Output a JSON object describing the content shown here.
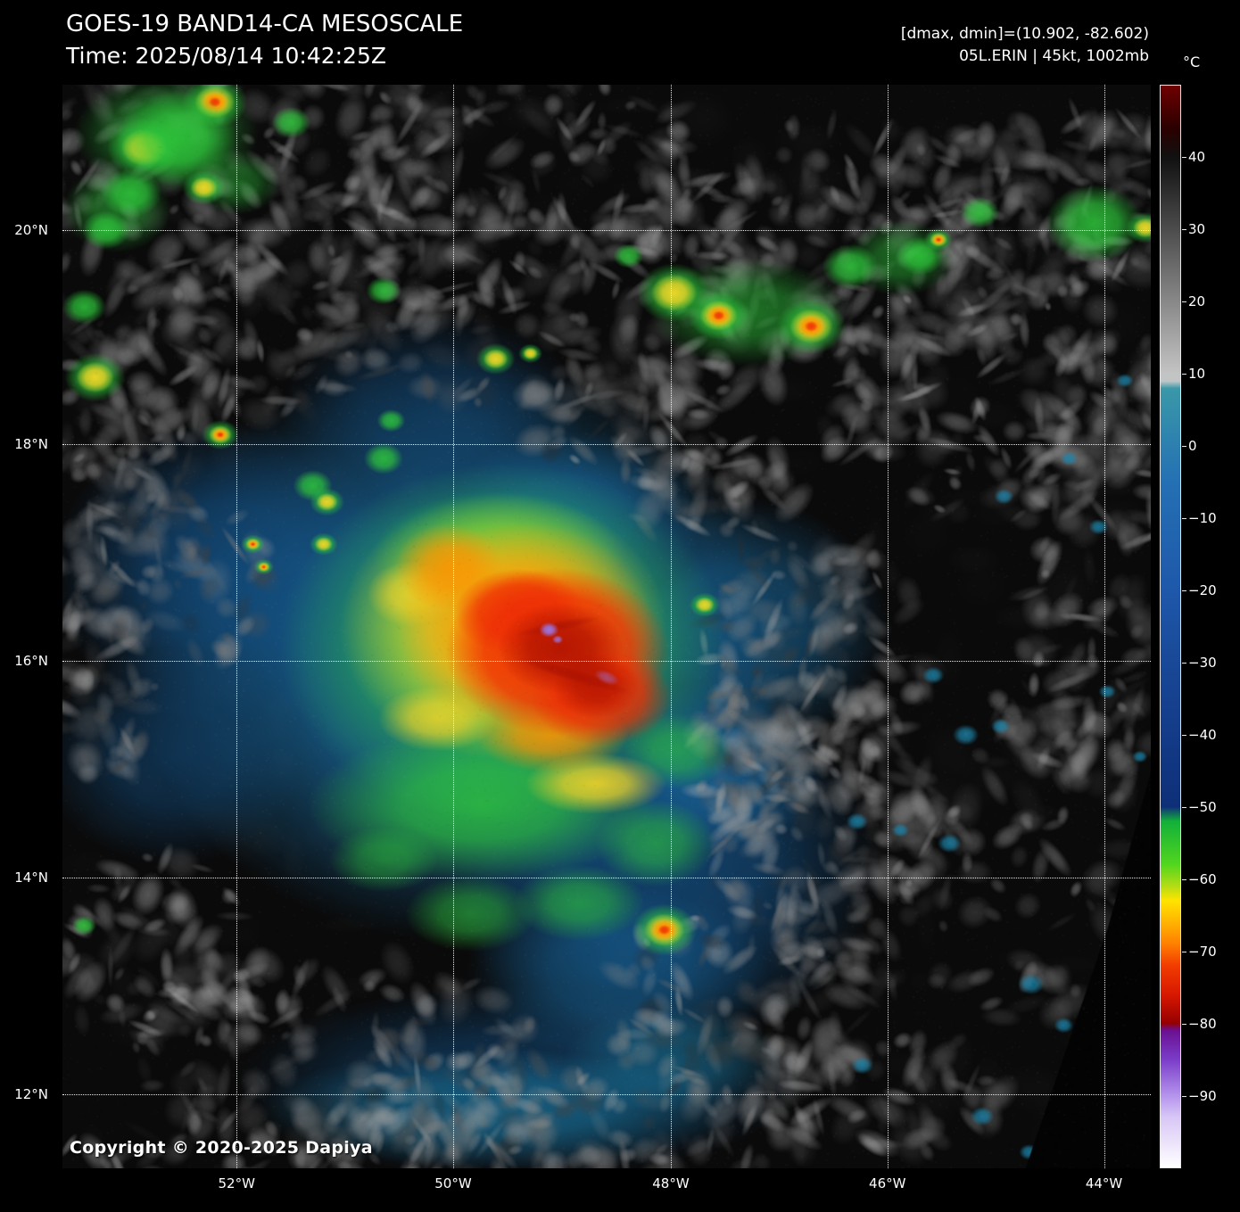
{
  "header": {
    "title": "GOES-19 BAND14-CA MESOSCALE",
    "time": "Time: 2025/08/14 10:42:25Z",
    "stats": "[dmax, dmin]=(10.902, -82.602)",
    "storm": "05L.ERIN | 45kt, 1002mb"
  },
  "copyright": "Copyright © 2020-2025 Dapiya",
  "axes": {
    "lat": [
      {
        "label": "20°N",
        "f": 0.134
      },
      {
        "label": "18°N",
        "f": 0.332
      },
      {
        "label": "16°N",
        "f": 0.532
      },
      {
        "label": "14°N",
        "f": 0.732
      },
      {
        "label": "12°N",
        "f": 0.932
      }
    ],
    "lon": [
      {
        "label": "52°W",
        "f": 0.16
      },
      {
        "label": "50°W",
        "f": 0.359
      },
      {
        "label": "48°W",
        "f": 0.559
      },
      {
        "label": "46°W",
        "f": 0.758
      },
      {
        "label": "44°W",
        "f": 0.957
      }
    ]
  },
  "colorbar": {
    "unit": "°C",
    "range": [
      50,
      -100
    ],
    "ticks": [
      "40",
      "30",
      "20",
      "10",
      "0",
      "−10",
      "−20",
      "−30",
      "−40",
      "−50",
      "−60",
      "−70",
      "−80",
      "−90"
    ],
    "tick_values": [
      40,
      30,
      20,
      10,
      0,
      -10,
      -20,
      -30,
      -40,
      -50,
      -60,
      -70,
      -80,
      -90
    ],
    "stops": [
      {
        "v": 50,
        "c": "#6e0000"
      },
      {
        "v": 44,
        "c": "#2a0000"
      },
      {
        "v": 40,
        "c": "#111111"
      },
      {
        "v": 10,
        "c": "#c4c4c4"
      },
      {
        "v": 9,
        "c": "#bfc6c6"
      },
      {
        "v": 8,
        "c": "#3a98a8"
      },
      {
        "v": -5,
        "c": "#2470b4"
      },
      {
        "v": -20,
        "c": "#1e58aa"
      },
      {
        "v": -35,
        "c": "#16418f"
      },
      {
        "v": -50,
        "c": "#0e2f78"
      },
      {
        "v": -52,
        "c": "#12b03a"
      },
      {
        "v": -58,
        "c": "#52d61e"
      },
      {
        "v": -61,
        "c": "#b4dc14"
      },
      {
        "v": -63,
        "c": "#ffe400"
      },
      {
        "v": -66,
        "c": "#ffb400"
      },
      {
        "v": -69,
        "c": "#ff8000"
      },
      {
        "v": -72,
        "c": "#f23c00"
      },
      {
        "v": -76,
        "c": "#d81800"
      },
      {
        "v": -80,
        "c": "#960000"
      },
      {
        "v": -81,
        "c": "#6a1090"
      },
      {
        "v": -85,
        "c": "#7a3cc8"
      },
      {
        "v": -90,
        "c": "#b493ec"
      },
      {
        "v": -93,
        "c": "#d8c6f6"
      },
      {
        "v": -100,
        "c": "#ffffff"
      }
    ]
  },
  "imagery": {
    "base": "#0a0a0a",
    "palette": {
      "green": "#2fc83c",
      "yellow": "#ffd926",
      "orange": "#ff9200",
      "red": "#ee2e06",
      "darkred": "#a81000",
      "teal": "#1d87ae",
      "blue": "#1a6fa8",
      "deepblue": "#14538a",
      "purple": "#9a7cf0"
    },
    "blue_field": [
      [
        0.36,
        0.52,
        0.3,
        0.27,
        "blue",
        0.9
      ],
      [
        0.15,
        0.45,
        0.16,
        0.14,
        "deepblue",
        0.7
      ],
      [
        0.55,
        0.72,
        0.2,
        0.17,
        "deepblue",
        0.75
      ],
      [
        0.62,
        0.5,
        0.14,
        0.12,
        "blue",
        0.6
      ],
      [
        0.42,
        0.92,
        0.26,
        0.09,
        "deepblue",
        0.55
      ],
      [
        0.1,
        0.62,
        0.12,
        0.1,
        "deepblue",
        0.5
      ],
      [
        0.34,
        0.3,
        0.14,
        0.09,
        "deepblue",
        0.45
      ],
      [
        0.47,
        0.4,
        0.12,
        0.08,
        "blue",
        0.6
      ],
      [
        0.6,
        0.63,
        0.1,
        0.08,
        "blue",
        0.6
      ],
      [
        0.51,
        0.82,
        0.14,
        0.08,
        "blue",
        0.5
      ],
      [
        0.4,
        0.945,
        0.22,
        0.055,
        "teal",
        0.5
      ],
      [
        0.56,
        0.9,
        0.1,
        0.05,
        "teal",
        0.45
      ]
    ],
    "gray_regions": [
      [
        0.15,
        0.07,
        0.22,
        0.13,
        240
      ],
      [
        0.42,
        0.09,
        0.18,
        0.11,
        170
      ],
      [
        0.5,
        0.21,
        0.26,
        0.1,
        170
      ],
      [
        0.74,
        0.14,
        0.22,
        0.11,
        220
      ],
      [
        0.92,
        0.11,
        0.12,
        0.09,
        130
      ],
      [
        0.86,
        0.29,
        0.17,
        0.11,
        170
      ],
      [
        0.965,
        0.45,
        0.09,
        0.22,
        150
      ],
      [
        0.13,
        0.24,
        0.15,
        0.09,
        130
      ],
      [
        0.09,
        0.46,
        0.11,
        0.08,
        90
      ],
      [
        0.055,
        0.345,
        0.07,
        0.05,
        60
      ],
      [
        0.69,
        0.53,
        0.105,
        0.11,
        150
      ],
      [
        0.71,
        0.7,
        0.12,
        0.11,
        160
      ],
      [
        0.64,
        0.62,
        0.07,
        0.07,
        80
      ],
      [
        0.63,
        0.85,
        0.14,
        0.09,
        130
      ],
      [
        0.25,
        0.895,
        0.19,
        0.09,
        150
      ],
      [
        0.08,
        0.8,
        0.1,
        0.09,
        90
      ],
      [
        0.45,
        0.965,
        0.24,
        0.05,
        110
      ],
      [
        0.88,
        0.74,
        0.11,
        0.13,
        70
      ],
      [
        0.6,
        0.38,
        0.08,
        0.05,
        60
      ],
      [
        0.52,
        0.3,
        0.1,
        0.06,
        70
      ],
      [
        0.035,
        0.56,
        0.05,
        0.08,
        50
      ],
      [
        0.3,
        0.985,
        0.3,
        0.035,
        80
      ],
      [
        0.75,
        0.93,
        0.12,
        0.06,
        70
      ],
      [
        0.92,
        0.575,
        0.07,
        0.06,
        40
      ]
    ],
    "storm_blobs": [
      [
        0.095,
        0.045,
        0.085,
        0.055,
        "green",
        0.6
      ],
      [
        0.05,
        0.115,
        0.05,
        0.04,
        "green",
        0.5
      ],
      [
        0.16,
        0.09,
        0.04,
        0.03,
        "green",
        0.45
      ],
      [
        0.63,
        0.21,
        0.09,
        0.05,
        "green",
        0.55
      ],
      [
        0.77,
        0.16,
        0.05,
        0.035,
        "green",
        0.5
      ],
      [
        0.405,
        0.515,
        0.205,
        0.165,
        "green",
        0.85
      ],
      [
        0.4,
        0.435,
        0.115,
        0.06,
        "green",
        0.8
      ],
      [
        0.385,
        0.665,
        0.16,
        0.07,
        "green",
        0.8
      ],
      [
        0.565,
        0.615,
        0.05,
        0.035,
        "green",
        0.6
      ],
      [
        0.545,
        0.7,
        0.055,
        0.04,
        "green",
        0.6
      ],
      [
        0.475,
        0.755,
        0.06,
        0.035,
        "green",
        0.6
      ],
      [
        0.375,
        0.765,
        0.06,
        0.035,
        "green",
        0.55
      ],
      [
        0.295,
        0.715,
        0.05,
        0.03,
        "green",
        0.5
      ],
      [
        0.405,
        0.5,
        0.15,
        0.122,
        "yellow",
        0.9
      ],
      [
        0.345,
        0.585,
        0.055,
        0.03,
        "yellow",
        0.75
      ],
      [
        0.49,
        0.645,
        0.065,
        0.028,
        "yellow",
        0.85
      ],
      [
        0.32,
        0.47,
        0.04,
        0.03,
        "yellow",
        0.7
      ],
      [
        0.425,
        0.5,
        0.118,
        0.096,
        "orange",
        0.95
      ],
      [
        0.355,
        0.445,
        0.05,
        0.04,
        "orange",
        0.85
      ],
      [
        0.45,
        0.6,
        0.07,
        0.035,
        "orange",
        0.85
      ],
      [
        0.455,
        0.523,
        0.103,
        0.077,
        "red",
        0.97,
        0,
        0.65
      ],
      [
        0.495,
        0.565,
        0.065,
        0.045,
        "red",
        0.9,
        0,
        0.6
      ],
      [
        0.42,
        0.487,
        0.06,
        0.04,
        "red",
        0.9,
        0,
        0.6
      ],
      [
        0.458,
        0.52,
        0.058,
        0.042,
        "darkred",
        0.8,
        0,
        0.5
      ],
      [
        0.49,
        0.555,
        0.04,
        0.03,
        "darkred",
        0.7
      ],
      [
        0.47,
        0.545,
        0.055,
        0.006,
        "darkred",
        0.6,
        0.3
      ],
      [
        0.455,
        0.5,
        0.04,
        0.005,
        "darkred",
        0.5,
        -0.2
      ],
      [
        0.447,
        0.503,
        0.009,
        0.007,
        "purple",
        0.95
      ],
      [
        0.455,
        0.512,
        0.005,
        0.004,
        "purple",
        0.8
      ],
      [
        0.5,
        0.547,
        0.012,
        0.006,
        "purple",
        0.45,
        0.4
      ]
    ],
    "cells": [
      [
        0.14,
        0.016,
        0.03,
        3
      ],
      [
        0.075,
        0.058,
        0.034,
        2
      ],
      [
        0.105,
        0.05,
        0.055,
        1
      ],
      [
        0.063,
        0.1,
        0.028,
        1
      ],
      [
        0.04,
        0.134,
        0.022,
        1
      ],
      [
        0.13,
        0.095,
        0.02,
        2
      ],
      [
        0.21,
        0.035,
        0.018,
        1
      ],
      [
        0.02,
        0.205,
        0.02,
        1
      ],
      [
        0.03,
        0.27,
        0.028,
        2
      ],
      [
        0.145,
        0.323,
        0.017,
        3
      ],
      [
        0.23,
        0.37,
        0.018,
        1
      ],
      [
        0.243,
        0.385,
        0.016,
        2
      ],
      [
        0.175,
        0.424,
        0.011,
        3
      ],
      [
        0.24,
        0.424,
        0.013,
        2
      ],
      [
        0.185,
        0.445,
        0.009,
        3
      ],
      [
        0.295,
        0.345,
        0.018,
        1
      ],
      [
        0.295,
        0.19,
        0.016,
        1
      ],
      [
        0.302,
        0.31,
        0.013,
        1
      ],
      [
        0.398,
        0.253,
        0.018,
        2
      ],
      [
        0.43,
        0.248,
        0.011,
        2
      ],
      [
        0.52,
        0.158,
        0.014,
        1
      ],
      [
        0.562,
        0.192,
        0.034,
        2
      ],
      [
        0.603,
        0.213,
        0.028,
        3
      ],
      [
        0.688,
        0.223,
        0.032,
        3
      ],
      [
        0.724,
        0.168,
        0.026,
        1
      ],
      [
        0.788,
        0.158,
        0.022,
        1
      ],
      [
        0.805,
        0.143,
        0.013,
        3
      ],
      [
        0.843,
        0.118,
        0.018,
        1
      ],
      [
        0.948,
        0.128,
        0.045,
        1
      ],
      [
        0.995,
        0.132,
        0.018,
        2
      ],
      [
        0.59,
        0.48,
        0.014,
        2
      ],
      [
        0.553,
        0.78,
        0.03,
        3
      ],
      [
        0.02,
        0.776,
        0.011,
        1
      ]
    ],
    "specks": [
      [
        0.8,
        0.545,
        0.01
      ],
      [
        0.83,
        0.6,
        0.012
      ],
      [
        0.862,
        0.592,
        0.009
      ],
      [
        0.73,
        0.68,
        0.01
      ],
      [
        0.77,
        0.688,
        0.008
      ],
      [
        0.815,
        0.7,
        0.011
      ],
      [
        0.89,
        0.83,
        0.012
      ],
      [
        0.92,
        0.868,
        0.009
      ],
      [
        0.845,
        0.952,
        0.011
      ],
      [
        0.888,
        0.985,
        0.009
      ],
      [
        0.735,
        0.905,
        0.01
      ],
      [
        0.865,
        0.38,
        0.009
      ],
      [
        0.925,
        0.345,
        0.008
      ],
      [
        0.952,
        0.408,
        0.009
      ],
      [
        0.976,
        0.273,
        0.008
      ],
      [
        0.96,
        0.56,
        0.008
      ],
      [
        0.99,
        0.62,
        0.007
      ]
    ],
    "nodata_poly": [
      [
        1.0,
        0.635
      ],
      [
        0.96,
        0.78
      ],
      [
        0.885,
        1.0
      ],
      [
        1.0,
        1.0
      ]
    ]
  }
}
